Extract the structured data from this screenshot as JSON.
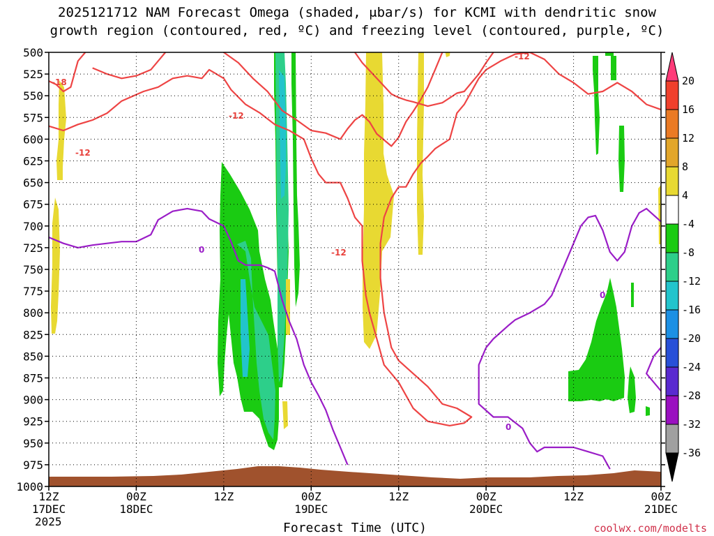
{
  "chart_data": {
    "type": "heatmap",
    "title_line1": "2025121712 NAM Forecast Omega (shaded, μbar/s) for KCMI with dendritic snow",
    "title_line2": "growth region (contoured, red, ºC) and freezing level (contoured, purple, ºC)",
    "xlabel": "Forecast Time (UTC)",
    "credit": "coolwx.com/modelts",
    "y_axis": {
      "ticks": [
        500,
        525,
        550,
        575,
        600,
        625,
        650,
        675,
        700,
        725,
        750,
        775,
        800,
        825,
        850,
        875,
        900,
        925,
        950,
        975,
        1000
      ],
      "range": [
        500,
        1000
      ],
      "inverted": true
    },
    "x_axis": {
      "range_hours": [
        0,
        84
      ],
      "ticks": [
        {
          "hour": 0,
          "line1": "12Z",
          "line2": "17DEC",
          "line3": "2025"
        },
        {
          "hour": 12,
          "line1": "00Z",
          "line2": "18DEC",
          "line3": ""
        },
        {
          "hour": 24,
          "line1": "12Z",
          "line2": "",
          "line3": ""
        },
        {
          "hour": 36,
          "line1": "00Z",
          "line2": "19DEC",
          "line3": ""
        },
        {
          "hour": 48,
          "line1": "12Z",
          "line2": "",
          "line3": ""
        },
        {
          "hour": 60,
          "line1": "00Z",
          "line2": "20DEC",
          "line3": ""
        },
        {
          "hour": 72,
          "line1": "12Z",
          "line2": "",
          "line3": ""
        },
        {
          "hour": 84,
          "line1": "00Z",
          "line2": "21DEC",
          "line3": ""
        }
      ]
    },
    "grid": true,
    "colorbar": {
      "labels": [
        "20",
        "16",
        "12",
        "8",
        "4",
        "-4",
        "-8",
        "-12",
        "-16",
        "-20",
        "-24",
        "-28",
        "-32",
        "-36"
      ],
      "colors": [
        "#ff3b79",
        "#f0402c",
        "#ea7a24",
        "#e2a62a",
        "#e8d932",
        "#ffffff",
        "#1acb12",
        "#2dcf8a",
        "#22c4cc",
        "#1c90e4",
        "#2850d8",
        "#5a2ad0",
        "#9a10c0",
        "#a0a0a0",
        "#000000"
      ]
    },
    "contour_labels": {
      "red": "-12",
      "red_alt": "-18",
      "purple": "0"
    },
    "series": [
      {
        "name": "dendritic snow growth region",
        "color": "#ee4444",
        "paths": [
          [
            [
              0,
              533
            ],
            [
              1,
              537
            ],
            [
              2,
              545
            ],
            [
              3,
              540
            ],
            [
              4,
              510
            ],
            [
              5,
              500
            ]
          ],
          [
            [
              0,
              585
            ],
            [
              2,
              590
            ],
            [
              4,
              583
            ],
            [
              6,
              578
            ],
            [
              8,
              570
            ],
            [
              10,
              556
            ],
            [
              13,
              545
            ],
            [
              15,
              540
            ],
            [
              17,
              530
            ],
            [
              19,
              527
            ],
            [
              21,
              530
            ],
            [
              22,
              520
            ],
            [
              24,
              530
            ],
            [
              25,
              543
            ],
            [
              27,
              560
            ],
            [
              29,
              570
            ],
            [
              31,
              583
            ],
            [
              33,
              590
            ],
            [
              35,
              600
            ],
            [
              36,
              622
            ],
            [
              37,
              640
            ],
            [
              38,
              650
            ],
            [
              40,
              650
            ],
            [
              41,
              668
            ],
            [
              42,
              690
            ],
            [
              43,
              700
            ],
            [
              43,
              740
            ],
            [
              43.5,
              780
            ],
            [
              44,
              800
            ],
            [
              45,
              830
            ],
            [
              46,
              860
            ],
            [
              48,
              880
            ],
            [
              50,
              910
            ],
            [
              52,
              925
            ],
            [
              55,
              930
            ],
            [
              57,
              927
            ],
            [
              58,
              920
            ],
            [
              56,
              910
            ],
            [
              54,
              905
            ],
            [
              52,
              885
            ],
            [
              50,
              870
            ],
            [
              48,
              855
            ],
            [
              47,
              840
            ],
            [
              46,
              800
            ],
            [
              45.5,
              760
            ],
            [
              45.5,
              720
            ],
            [
              46,
              690
            ],
            [
              47,
              668
            ],
            [
              48,
              655
            ],
            [
              49,
              655
            ],
            [
              50,
              640
            ],
            [
              51,
              628
            ],
            [
              52,
              620
            ],
            [
              53,
              611
            ],
            [
              55,
              600
            ],
            [
              56,
              570
            ],
            [
              57,
              560
            ],
            [
              58,
              545
            ],
            [
              59,
              530
            ],
            [
              60,
              520
            ],
            [
              62,
              510
            ],
            [
              64,
              502
            ],
            [
              66,
              500
            ],
            [
              68,
              508
            ],
            [
              70,
              525
            ],
            [
              72,
              535
            ],
            [
              74,
              548
            ],
            [
              76,
              545
            ],
            [
              78,
              535
            ],
            [
              80,
              545
            ],
            [
              82,
              560
            ],
            [
              84,
              566
            ]
          ],
          [
            [
              42,
              500
            ],
            [
              43,
              512
            ],
            [
              45,
              530
            ],
            [
              47,
              548
            ],
            [
              48,
              552
            ],
            [
              49,
              555
            ],
            [
              50,
              557
            ],
            [
              52,
              562
            ],
            [
              54,
              558
            ],
            [
              56,
              547
            ],
            [
              57,
              545
            ],
            [
              58,
              535
            ],
            [
              59,
              525
            ],
            [
              60,
              512
            ],
            [
              61,
              500
            ]
          ],
          [
            [
              24,
              500
            ],
            [
              26,
              512
            ],
            [
              28,
              530
            ],
            [
              30,
              545
            ],
            [
              32,
              567
            ],
            [
              34,
              578
            ],
            [
              36,
              590
            ],
            [
              38,
              593
            ],
            [
              40,
              600
            ],
            [
              41,
              588
            ],
            [
              42,
              578
            ],
            [
              43,
              572
            ],
            [
              44,
              580
            ],
            [
              45,
              594
            ],
            [
              47,
              608
            ],
            [
              48,
              598
            ],
            [
              49,
              580
            ],
            [
              50,
              568
            ],
            [
              51,
              555
            ],
            [
              52,
              540
            ],
            [
              53,
              520
            ],
            [
              54,
              500
            ]
          ],
          [
            [
              6,
              518
            ],
            [
              8,
              525
            ],
            [
              10,
              530
            ],
            [
              12,
              527
            ],
            [
              14,
              520
            ],
            [
              15,
              510
            ],
            [
              16,
              500
            ]
          ]
        ]
      },
      {
        "name": "freezing level",
        "color": "#9a1dc7",
        "paths": [
          [
            [
              0,
              713
            ],
            [
              2,
              720
            ],
            [
              4,
              725
            ],
            [
              6,
              722
            ],
            [
              8,
              720
            ],
            [
              10,
              718
            ],
            [
              12,
              718
            ],
            [
              14,
              710
            ],
            [
              15,
              693
            ],
            [
              17,
              683
            ],
            [
              19,
              680
            ],
            [
              21,
              683
            ],
            [
              22,
              692
            ],
            [
              24,
              700
            ],
            [
              25,
              718
            ],
            [
              26,
              740
            ],
            [
              27,
              745
            ],
            [
              29,
              745
            ],
            [
              30,
              748
            ],
            [
              31,
              752
            ],
            [
              32,
              785
            ],
            [
              33,
              810
            ],
            [
              34,
              830
            ],
            [
              35,
              860
            ],
            [
              36,
              880
            ],
            [
              37,
              895
            ],
            [
              38,
              912
            ],
            [
              39,
              935
            ],
            [
              40,
              955
            ],
            [
              41,
              975
            ]
          ],
          [
            [
              60,
              840
            ],
            [
              61,
              830
            ],
            [
              63,
              815
            ],
            [
              64,
              808
            ],
            [
              66,
              800
            ],
            [
              68,
              790
            ],
            [
              69,
              780
            ],
            [
              70,
              760
            ],
            [
              71,
              740
            ],
            [
              72,
              720
            ],
            [
              73,
              700
            ],
            [
              74,
              690
            ],
            [
              75,
              688
            ],
            [
              76,
              705
            ],
            [
              77,
              730
            ],
            [
              78,
              740
            ],
            [
              79,
              730
            ],
            [
              80,
              700
            ],
            [
              81,
              685
            ],
            [
              82,
              680
            ],
            [
              84,
              695
            ]
          ],
          [
            [
              60,
              840
            ],
            [
              59,
              860
            ],
            [
              59,
              880
            ],
            [
              59,
              905
            ],
            [
              61,
              920
            ],
            [
              63,
              920
            ],
            [
              65,
              933
            ],
            [
              66,
              950
            ],
            [
              67,
              960
            ],
            [
              68,
              955
            ],
            [
              70,
              955
            ],
            [
              72,
              955
            ],
            [
              74,
              960
            ],
            [
              76,
              965
            ],
            [
              77,
              980
            ]
          ],
          [
            [
              84,
              840
            ],
            [
              83,
              850
            ],
            [
              82,
              870
            ],
            [
              83,
              880
            ],
            [
              84,
              890
            ]
          ]
        ]
      }
    ]
  }
}
